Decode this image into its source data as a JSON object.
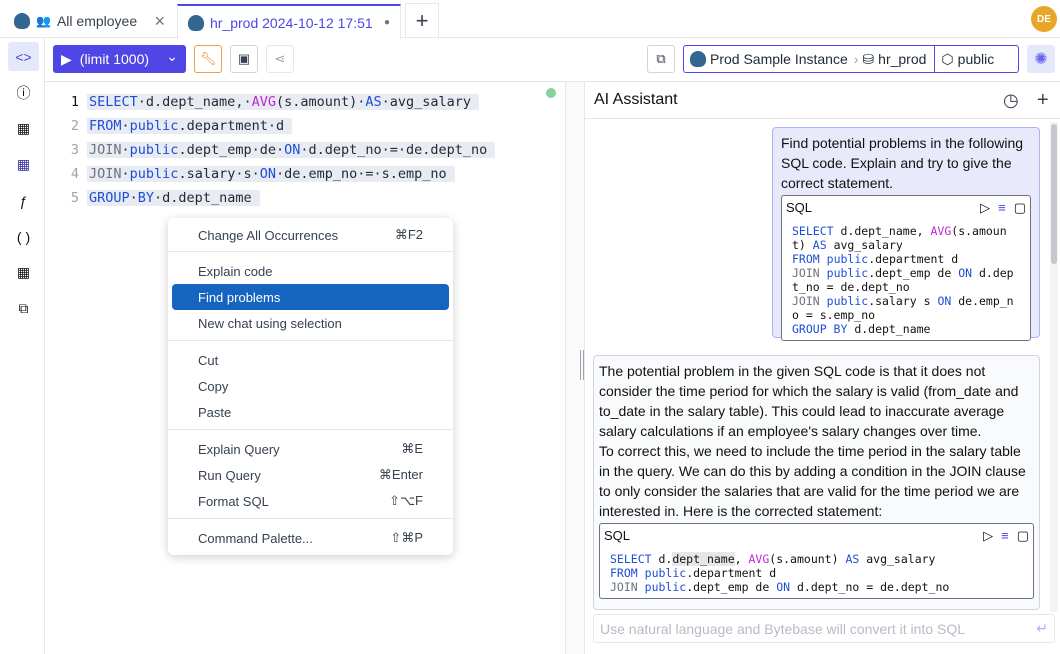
{
  "tabs": [
    {
      "label": "All employee",
      "icon": "postgres-icon",
      "close": "×"
    },
    {
      "label": "hr_prod 2024-10-12 17:51",
      "icon": "postgres-icon",
      "dot": "●",
      "active": true
    }
  ],
  "new_tab": "+",
  "avatar": "DE",
  "toolbar": {
    "run_label": "(limit 1000)",
    "run_icon": "▶",
    "dropdown_icon": "⌄",
    "wrench": "🔧",
    "save": "💾",
    "share": "⋖"
  },
  "breadcrumb": {
    "instance": "Prod Sample Instance",
    "sep": "›",
    "database": "hr_prod",
    "schema": "public"
  },
  "editor": {
    "lines": [
      {
        "n": "1",
        "parts": [
          [
            "kw",
            "SELECT"
          ],
          [
            "",
            "·d.dept_name,·"
          ],
          [
            "fn",
            "AVG"
          ],
          [
            "",
            "(s.amount)·"
          ],
          [
            "kw",
            "AS"
          ],
          [
            "",
            "·avg_salary"
          ]
        ]
      },
      {
        "n": "2",
        "parts": [
          [
            "kw",
            "FROM"
          ],
          [
            "",
            "·"
          ],
          [
            "kw",
            "public"
          ],
          [
            "",
            ".department·d"
          ]
        ]
      },
      {
        "n": "3",
        "parts": [
          [
            "gr",
            "JOIN"
          ],
          [
            "",
            "·"
          ],
          [
            "kw",
            "public"
          ],
          [
            "",
            ".dept_emp·de·"
          ],
          [
            "kw",
            "ON"
          ],
          [
            "",
            "·d.dept_no·=·de.dept_no"
          ]
        ]
      },
      {
        "n": "4",
        "parts": [
          [
            "gr",
            "JOIN"
          ],
          [
            "",
            "·"
          ],
          [
            "kw",
            "public"
          ],
          [
            "",
            ".salary·s·"
          ],
          [
            "kw",
            "ON"
          ],
          [
            "",
            "·de.emp_no·=·s.emp_no"
          ]
        ]
      },
      {
        "n": "5",
        "parts": [
          [
            "kw",
            "GROUP"
          ],
          [
            "",
            "·"
          ],
          [
            "kw",
            "BY"
          ],
          [
            "",
            "·d.dept_name"
          ]
        ]
      }
    ]
  },
  "context_menu": {
    "items": [
      {
        "label": "Change All Occurrences",
        "shortcut": "⌘F2"
      },
      {
        "label": "Explain code",
        "shortcut": ""
      },
      {
        "label": "Find problems",
        "shortcut": "",
        "selected": true
      },
      {
        "label": "New chat using selection",
        "shortcut": ""
      },
      {
        "label": "Cut",
        "shortcut": ""
      },
      {
        "label": "Copy",
        "shortcut": ""
      },
      {
        "label": "Paste",
        "shortcut": ""
      },
      {
        "label": "Explain Query",
        "shortcut": "⌘E"
      },
      {
        "label": "Run Query",
        "shortcut": "⌘Enter"
      },
      {
        "label": "Format SQL",
        "shortcut": "⇧⌥F"
      },
      {
        "label": "Command Palette...",
        "shortcut": "⇧⌘P"
      }
    ]
  },
  "ai": {
    "title": "AI Assistant",
    "user_message": "Find potential problems in the following SQL code. Explain and try to give the correct statement.",
    "sql_label": "SQL",
    "user_sql": [
      [
        [
          "kw",
          "SELECT"
        ],
        [
          "",
          " d.dept_name, "
        ],
        [
          "fn",
          "AVG"
        ],
        [
          "",
          "(s.amount) "
        ],
        [
          "kw",
          "AS"
        ],
        [
          "",
          " avg_salary"
        ]
      ],
      [
        [
          "kw",
          "FROM"
        ],
        [
          "",
          " "
        ],
        [
          "kw",
          "public"
        ],
        [
          "",
          ".department d"
        ]
      ],
      [
        [
          "gr",
          "JOIN"
        ],
        [
          "",
          " "
        ],
        [
          "kw",
          "public"
        ],
        [
          "",
          ".dept_emp de "
        ],
        [
          "kw",
          "ON"
        ],
        [
          "",
          " d.dept_no = de.dept_no"
        ]
      ],
      [
        [
          "gr",
          "JOIN"
        ],
        [
          "",
          " "
        ],
        [
          "kw",
          "public"
        ],
        [
          "",
          ".salary s "
        ],
        [
          "kw",
          "ON"
        ],
        [
          "",
          " de.emp_no = s.emp_no"
        ]
      ],
      [
        [
          "kw",
          "GROUP BY"
        ],
        [
          "",
          " d.dept_name"
        ]
      ]
    ],
    "response_p1": "The potential problem in the given SQL code is that it does not consider the time period for which the salary is valid (from_date and to_date in the salary table). This could lead to inaccurate average salary calculations if an employee's salary changes over time.",
    "response_p2": "To correct this, we need to include the time period in the salary table in the query. We can do this by adding a condition in the JOIN clause to only consider the salaries that are valid for the time period we are interested in. Here is the corrected statement:",
    "response_sql": [
      [
        [
          "kw",
          "SELECT"
        ],
        [
          "",
          " d."
        ],
        [
          "hl",
          "dept_name"
        ],
        [
          "",
          ", "
        ],
        [
          "fn",
          "AVG"
        ],
        [
          "",
          "(s.amount) "
        ],
        [
          "kw",
          "AS"
        ],
        [
          "",
          " avg_salary"
        ]
      ],
      [
        [
          "kw",
          "FROM"
        ],
        [
          "",
          " "
        ],
        [
          "kw",
          "public"
        ],
        [
          "",
          ".department d"
        ]
      ],
      [
        [
          "gr",
          "JOIN"
        ],
        [
          "",
          " "
        ],
        [
          "kw",
          "public"
        ],
        [
          "",
          ".dept_emp de "
        ],
        [
          "kw",
          "ON"
        ],
        [
          "",
          " d.dept_no = de.dept_no"
        ]
      ]
    ],
    "input_placeholder": "Use natural language and Bytebase will convert it into SQL"
  },
  "colors": {
    "accent": "#4f46e5",
    "menu_selected": "#1565c0",
    "avatar": "#e8a628"
  }
}
